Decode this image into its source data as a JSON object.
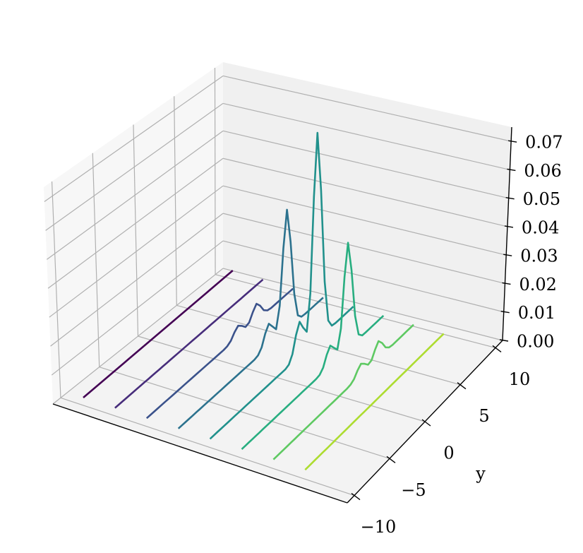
{
  "chart_data": {
    "type": "line3d",
    "y": [
      -10,
      -9.5,
      -9,
      -8.5,
      -8,
      -7.5,
      -7,
      -6.5,
      -6,
      -5.5,
      -5,
      -4.5,
      -4,
      -3.5,
      -3,
      -2.5,
      -2,
      -1.5,
      -1,
      -0.5,
      0,
      0.5,
      1,
      1.5,
      2,
      2.5,
      3,
      3.5,
      4,
      4.5,
      5,
      5.5,
      6,
      6.5,
      7,
      7.5,
      8,
      8.5,
      9,
      9.5,
      10
    ],
    "series": [
      {
        "color": "#440154",
        "values": [
          0,
          0,
          0,
          0,
          0,
          0,
          0,
          0,
          0,
          0,
          0,
          0,
          0,
          0,
          0,
          0,
          0,
          0,
          0,
          0,
          0,
          0,
          0,
          0,
          0,
          0,
          0,
          0,
          0,
          0,
          0,
          0,
          0,
          0,
          0,
          0,
          0,
          0,
          0,
          0,
          0
        ]
      },
      {
        "color": "#472d7b",
        "values": [
          0,
          0,
          0,
          0,
          0,
          0,
          0,
          0,
          0,
          0,
          0,
          0,
          0,
          0,
          0,
          0,
          0,
          0,
          0,
          0,
          0,
          0,
          0,
          0,
          0,
          0,
          0,
          0,
          0,
          0,
          0,
          0,
          0,
          0,
          0,
          0,
          0,
          0,
          0,
          0,
          0
        ]
      },
      {
        "color": "#3b528b",
        "values": [
          0,
          0,
          0,
          0,
          0,
          0,
          0,
          0,
          0,
          0,
          0,
          0,
          0,
          0,
          0,
          0,
          0,
          0,
          0,
          0,
          0,
          0,
          0.0002,
          0.001,
          0.0028,
          0.004,
          0.0028,
          0.0013,
          0.0017,
          0.0042,
          0.006,
          0.0042,
          0.0015,
          0.0003,
          0,
          0,
          0,
          0,
          0,
          0,
          0
        ]
      },
      {
        "color": "#2c728e",
        "values": [
          0,
          0,
          0,
          0,
          0,
          0,
          0,
          0,
          0,
          0,
          0,
          0,
          0,
          0,
          0,
          0,
          0,
          0,
          0,
          0,
          0,
          0,
          0.0004,
          0.002,
          0.0057,
          0.008,
          0.0059,
          0.0038,
          0.0108,
          0.0297,
          0.042,
          0.0297,
          0.0105,
          0.0018,
          0.0002,
          0,
          0,
          0,
          0,
          0,
          0
        ]
      },
      {
        "color": "#21918c",
        "values": [
          0,
          0,
          0,
          0,
          0,
          0,
          0,
          0,
          0,
          0,
          0,
          0,
          0,
          0,
          0,
          0,
          0,
          0,
          0,
          0,
          0,
          0,
          0.0005,
          0.003,
          0.0085,
          0.012,
          0.0088,
          0.0062,
          0.0184,
          0.0509,
          0.072,
          0.0509,
          0.0179,
          0.0032,
          0.0003,
          0,
          0,
          0,
          0,
          0,
          0
        ]
      },
      {
        "color": "#28ae80",
        "values": [
          0,
          0,
          0,
          0,
          0,
          0,
          0,
          0,
          0,
          0,
          0,
          0,
          0,
          0,
          0,
          0,
          0,
          0,
          0,
          0,
          0,
          0,
          0.0003,
          0.0017,
          0.005,
          0.007,
          0.0051,
          0.0033,
          0.0094,
          0.0262,
          0.037,
          0.0262,
          0.0092,
          0.0016,
          0.0001,
          0,
          0,
          0,
          0,
          0,
          0
        ]
      },
      {
        "color": "#5ec962",
        "values": [
          0,
          0,
          0,
          0,
          0,
          0,
          0,
          0,
          0,
          0,
          0,
          0,
          0,
          0,
          0,
          0,
          0,
          0,
          0,
          0,
          0,
          0,
          0.0002,
          0.001,
          0.0028,
          0.004,
          0.0028,
          0.0013,
          0.0017,
          0.0042,
          0.006,
          0.0042,
          0.0015,
          0.0003,
          0,
          0,
          0,
          0,
          0,
          0,
          0
        ]
      },
      {
        "color": "#addc30",
        "values": [
          0,
          0,
          0,
          0,
          0,
          0,
          0,
          0,
          0,
          0,
          0,
          0,
          0,
          0,
          0,
          0,
          0,
          0,
          0,
          0,
          0,
          0,
          0,
          0,
          0,
          0,
          0,
          0,
          0,
          0,
          0,
          0,
          0,
          0,
          0,
          0,
          0,
          0,
          0,
          0,
          0
        ]
      }
    ],
    "ylabel": "y",
    "ylim": [
      -11,
      11
    ],
    "yticks": [
      {
        "value": -10,
        "label": "−10"
      },
      {
        "value": -5,
        "label": "−5"
      },
      0,
      5,
      10
    ],
    "zlim": [
      0,
      0.075
    ],
    "zticks": [
      {
        "value": 0,
        "label": "0.00"
      },
      0.01,
      0.02,
      0.03,
      0.04,
      0.05,
      0.06,
      0.07
    ],
    "grid": true
  }
}
